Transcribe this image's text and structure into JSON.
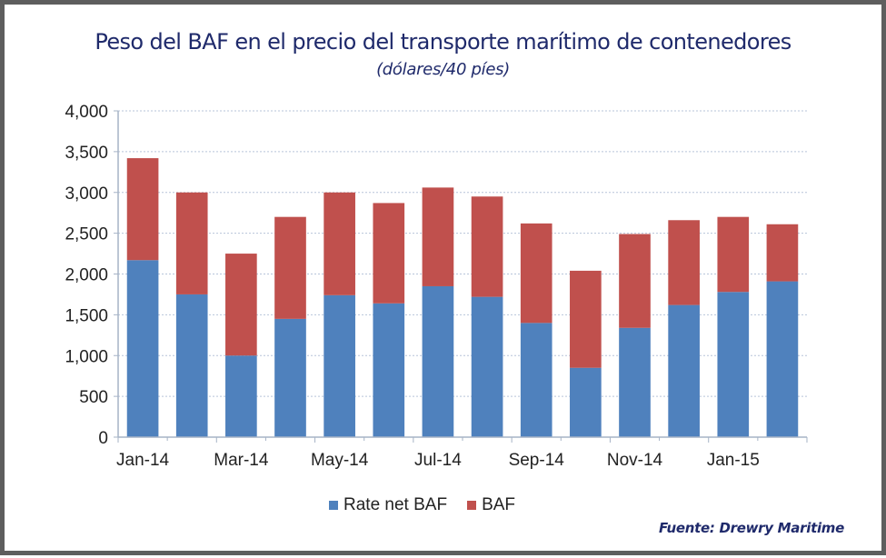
{
  "chart_data": {
    "type": "bar",
    "stacked": true,
    "title": "Peso del BAF en el precio del transporte marítimo de contenedores",
    "subtitle": "(dólares/40 píes)",
    "xlabel": "",
    "ylabel": "",
    "categories": [
      "Jan-14",
      "Feb-14",
      "Mar-14",
      "Apr-14",
      "May-14",
      "Jun-14",
      "Jul-14",
      "Aug-14",
      "Sep-14",
      "Oct-14",
      "Nov-14",
      "Dec-14",
      "Jan-15",
      "Feb-15"
    ],
    "x_tick_labels": [
      "Jan-14",
      "",
      "Mar-14",
      "",
      "May-14",
      "",
      "Jul-14",
      "",
      "Sep-14",
      "",
      "Nov-14",
      "",
      "Jan-15",
      ""
    ],
    "series": [
      {
        "name": "Rate net BAF",
        "color": "#4f81bd",
        "values": [
          2170,
          1750,
          1000,
          1450,
          1740,
          1640,
          1850,
          1720,
          1400,
          850,
          1340,
          1620,
          1780,
          1910
        ]
      },
      {
        "name": "BAF",
        "color": "#c0504d",
        "values": [
          1250,
          1250,
          1250,
          1250,
          1260,
          1230,
          1210,
          1230,
          1220,
          1190,
          1150,
          1040,
          920,
          700
        ]
      }
    ],
    "totals": [
      3420,
      3000,
      2250,
      2700,
      3000,
      2870,
      3060,
      2950,
      2620,
      2040,
      2490,
      2660,
      2700,
      2610
    ],
    "ylim": [
      0,
      4000
    ],
    "y_ticks": [
      0,
      500,
      1000,
      1500,
      2000,
      2500,
      3000,
      3500,
      4000
    ],
    "y_tick_labels": [
      "0",
      "500",
      "1,000",
      "1,500",
      "2,000",
      "2,500",
      "3,000",
      "3,500",
      "4,000"
    ],
    "grid": true,
    "legend": "bottom-center",
    "source": "Fuente: Drewry Maritime"
  },
  "header": {
    "title": "Peso del BAF en el precio del transporte marítimo de contenedores",
    "subtitle": "(dólares/40 píes)"
  },
  "legend": {
    "items": [
      {
        "label": "Rate net BAF",
        "color": "#4f81bd"
      },
      {
        "label": "BAF",
        "color": "#c0504d"
      }
    ]
  },
  "footer": {
    "source": "Fuente: Drewry Maritime"
  },
  "colors": {
    "title": "#1f2a6b",
    "grid": "#b7c4d9",
    "axis": "#a6b3c6",
    "frame": "#5e5e5e"
  }
}
